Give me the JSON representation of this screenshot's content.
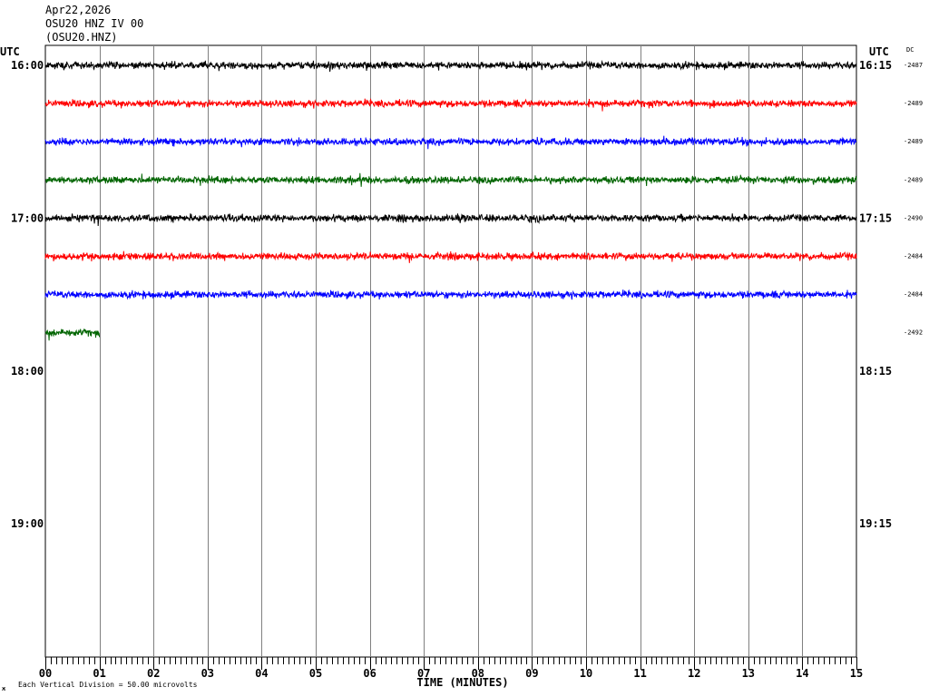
{
  "header": {
    "date": "Apr22,2026",
    "station": "OSU20 HNZ IV 00",
    "channel": "(OSU20.HNZ)"
  },
  "labels": {
    "utc_left": "UTC",
    "utc_right": "UTC",
    "dc": "DC",
    "xlabel": "TIME (MINUTES)",
    "footer_mark": "ж",
    "footer_scale": "Each Vertical Division =   50.00 microvolts"
  },
  "chart_data": {
    "type": "line",
    "title": "",
    "xlabel": "TIME (MINUTES)",
    "x_ticks": [
      "00",
      "01",
      "02",
      "03",
      "04",
      "05",
      "06",
      "07",
      "08",
      "09",
      "10",
      "11",
      "12",
      "13",
      "14",
      "15"
    ],
    "x_range": [
      0,
      15
    ],
    "left_time_labels": [
      "16:00",
      "17:00",
      "18:00",
      "19:00"
    ],
    "right_time_labels": [
      "16:15",
      "17:15",
      "18:15",
      "19:15"
    ],
    "trace_rows": 16,
    "traces": [
      {
        "row": 0,
        "color": "#000000",
        "end_minute": 15,
        "dc": "-2487"
      },
      {
        "row": 1,
        "color": "#ff0000",
        "end_minute": 15,
        "dc": "-2489"
      },
      {
        "row": 2,
        "color": "#0000ff",
        "end_minute": 15,
        "dc": "-2489"
      },
      {
        "row": 3,
        "color": "#006400",
        "end_minute": 15,
        "dc": "-2489"
      },
      {
        "row": 4,
        "color": "#000000",
        "end_minute": 15,
        "dc": "-2490"
      },
      {
        "row": 5,
        "color": "#ff0000",
        "end_minute": 15,
        "dc": "-2484"
      },
      {
        "row": 6,
        "color": "#0000ff",
        "end_minute": 15,
        "dc": "-2484"
      },
      {
        "row": 7,
        "color": "#006400",
        "end_minute": 1,
        "dc": "-2492"
      }
    ],
    "grid": true
  }
}
